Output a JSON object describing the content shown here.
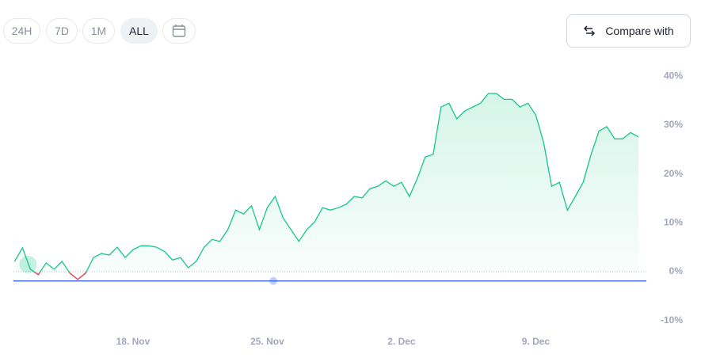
{
  "toolbar": {
    "ranges": [
      "24H",
      "7D",
      "1M",
      "ALL"
    ],
    "active_index": 3,
    "compare_button": "Compare with"
  },
  "chart_data": {
    "type": "line",
    "categories": [
      null,
      null,
      null,
      null,
      null,
      null,
      null,
      null,
      null,
      null,
      null,
      null,
      null,
      null,
      null,
      "18. Nov",
      null,
      null,
      null,
      null,
      null,
      null,
      null,
      null,
      null,
      null,
      null,
      null,
      null,
      null,
      null,
      null,
      "25. Nov",
      null,
      null,
      null,
      null,
      null,
      null,
      null,
      null,
      null,
      null,
      null,
      null,
      null,
      null,
      null,
      null,
      "2. Dec",
      null,
      null,
      null,
      null,
      null,
      null,
      null,
      null,
      null,
      null,
      null,
      null,
      null,
      null,
      null,
      null,
      "9. Dec",
      null,
      null,
      null,
      null,
      null,
      null,
      null,
      null,
      null,
      null,
      null,
      null,
      null
    ],
    "series": [
      {
        "color": "#16c784",
        "negative_color": "#ea3943",
        "values": [
          2.1,
          4.9,
          0.5,
          -0.6,
          1.8,
          0.5,
          2.1,
          -0.3,
          -1.6,
          -0.3,
          2.9,
          3.7,
          3.4,
          5.0,
          2.9,
          4.5,
          5.3,
          5.3,
          5.0,
          4.1,
          2.4,
          2.9,
          0.8,
          2.1,
          5.0,
          6.6,
          6.2,
          8.6,
          12.6,
          11.8,
          13.5,
          8.6,
          13.1,
          15.4,
          11.0,
          8.6,
          6.2,
          8.6,
          10.2,
          13.1,
          12.6,
          13.1,
          13.8,
          15.4,
          15.1,
          17.0,
          17.5,
          18.6,
          17.5,
          18.3,
          15.4,
          19.1,
          23.5,
          24.0,
          33.7,
          34.5,
          31.3,
          32.9,
          33.7,
          34.5,
          36.5,
          36.5,
          35.3,
          35.3,
          33.7,
          34.5,
          32.1,
          26.4,
          17.5,
          18.3,
          12.6,
          15.4,
          18.3,
          24.0,
          28.8,
          29.7,
          27.2,
          27.2,
          28.5,
          27.6
        ]
      }
    ],
    "reference_line": {
      "value": -1.9,
      "color": "#3861fb"
    },
    "ylim": [
      -12.5,
      42.5
    ],
    "yticks": [
      {
        "value": -10,
        "label": "-10%"
      },
      {
        "value": 0,
        "label": "0%"
      },
      {
        "value": 10,
        "label": "10%"
      },
      {
        "value": 20,
        "label": "20%"
      },
      {
        "value": 30,
        "label": "30%"
      },
      {
        "value": 40,
        "label": "40%"
      }
    ]
  }
}
